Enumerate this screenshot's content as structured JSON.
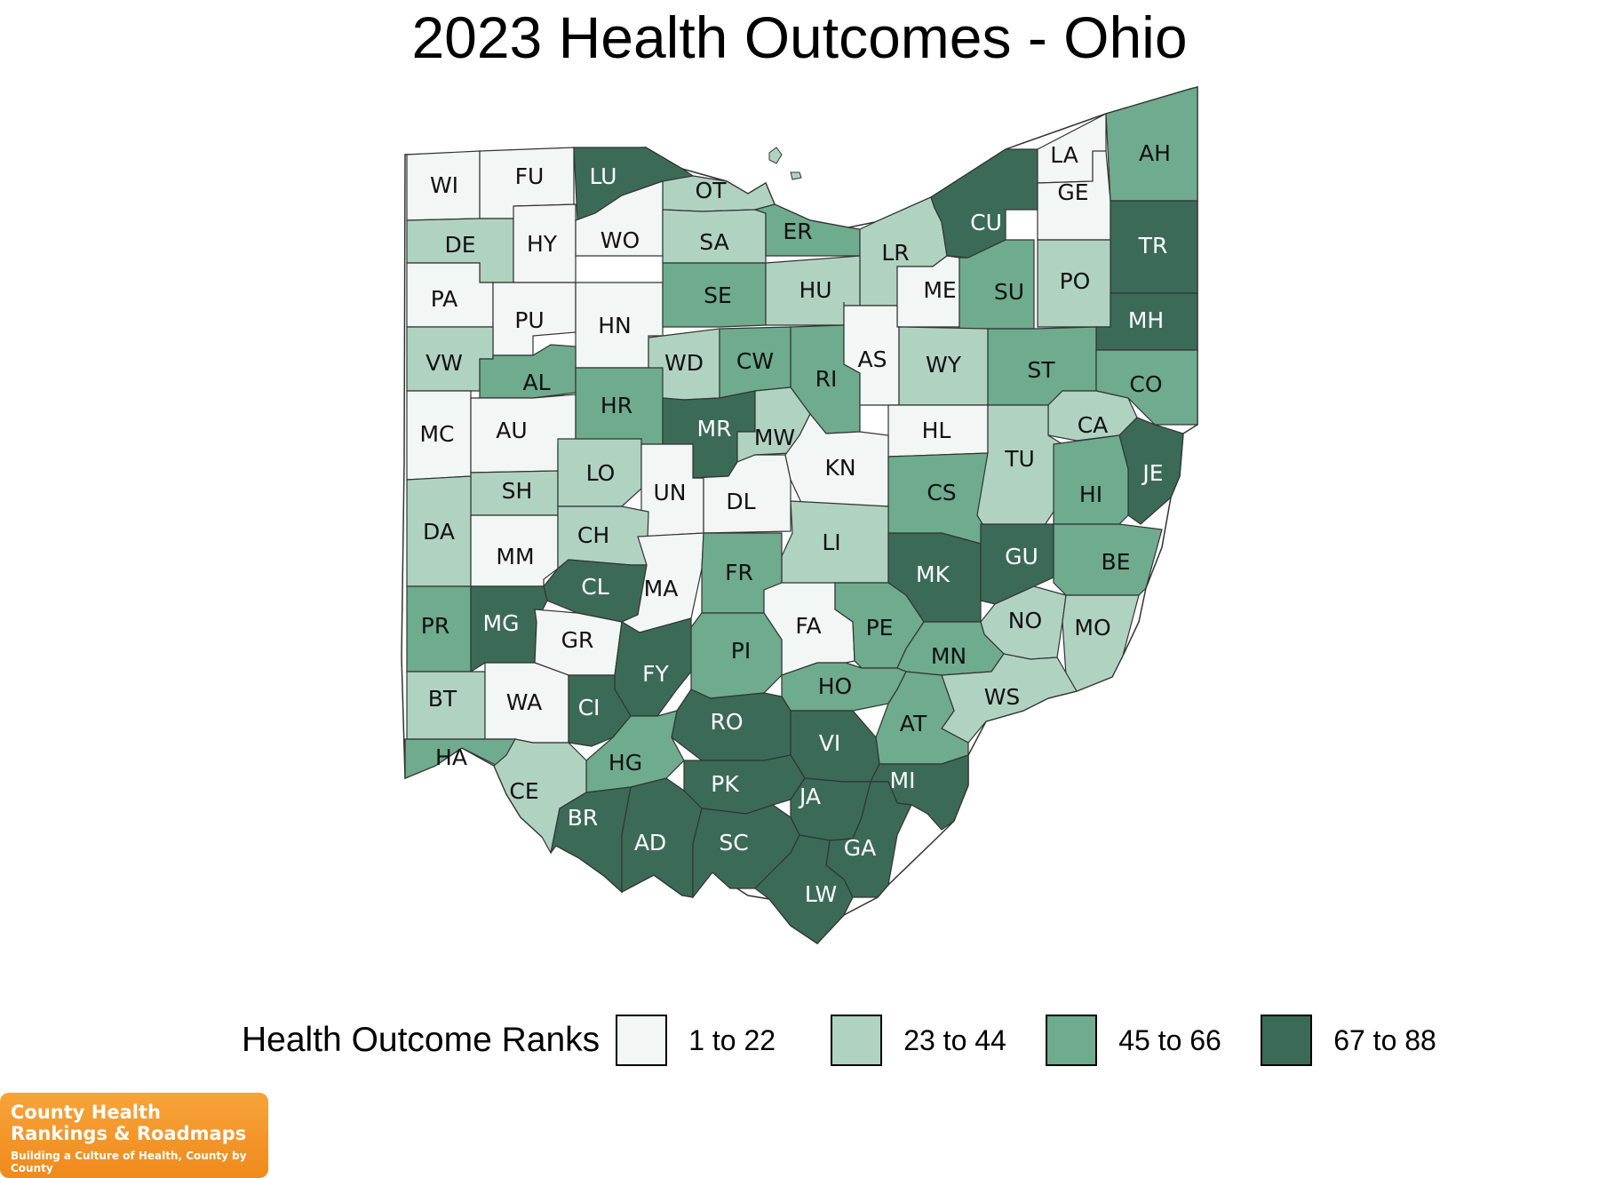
{
  "title": "2023 Health Outcomes - Ohio",
  "legend": {
    "title": "Health Outcome Ranks",
    "bins": [
      {
        "label": "1 to 22",
        "color": "#f2f6f4"
      },
      {
        "label": "23 to 44",
        "color": "#b0d3c1"
      },
      {
        "label": "45 to 66",
        "color": "#6fab8e"
      },
      {
        "label": "67 to 88",
        "color": "#3b6b56"
      }
    ]
  },
  "counties": [
    {
      "code": "WI",
      "bin": 0
    },
    {
      "code": "FU",
      "bin": 0
    },
    {
      "code": "LU",
      "bin": 3
    },
    {
      "code": "OT",
      "bin": 1
    },
    {
      "code": "DE",
      "bin": 1
    },
    {
      "code": "HY",
      "bin": 0
    },
    {
      "code": "WO",
      "bin": 0
    },
    {
      "code": "SA",
      "bin": 1
    },
    {
      "code": "ER",
      "bin": 2
    },
    {
      "code": "LR",
      "bin": 1
    },
    {
      "code": "CU",
      "bin": 3
    },
    {
      "code": "LA",
      "bin": 0
    },
    {
      "code": "GE",
      "bin": 0
    },
    {
      "code": "AH",
      "bin": 2
    },
    {
      "code": "TR",
      "bin": 3
    },
    {
      "code": "PA",
      "bin": 0
    },
    {
      "code": "PU",
      "bin": 0
    },
    {
      "code": "HN",
      "bin": 0
    },
    {
      "code": "SE",
      "bin": 2
    },
    {
      "code": "HU",
      "bin": 1
    },
    {
      "code": "ME",
      "bin": 0
    },
    {
      "code": "SU",
      "bin": 2
    },
    {
      "code": "PO",
      "bin": 1
    },
    {
      "code": "MH",
      "bin": 3
    },
    {
      "code": "VW",
      "bin": 1
    },
    {
      "code": "AL",
      "bin": 2
    },
    {
      "code": "WD",
      "bin": 1
    },
    {
      "code": "CW",
      "bin": 2
    },
    {
      "code": "RI",
      "bin": 2
    },
    {
      "code": "AS",
      "bin": 0
    },
    {
      "code": "WY",
      "bin": 1
    },
    {
      "code": "ST",
      "bin": 2
    },
    {
      "code": "CO",
      "bin": 2
    },
    {
      "code": "MC",
      "bin": 0
    },
    {
      "code": "AU",
      "bin": 0
    },
    {
      "code": "HR",
      "bin": 2
    },
    {
      "code": "MR",
      "bin": 3
    },
    {
      "code": "MW",
      "bin": 1
    },
    {
      "code": "HL",
      "bin": 0
    },
    {
      "code": "CA",
      "bin": 1
    },
    {
      "code": "JE",
      "bin": 3
    },
    {
      "code": "SH",
      "bin": 1
    },
    {
      "code": "LO",
      "bin": 1
    },
    {
      "code": "UN",
      "bin": 0
    },
    {
      "code": "DL",
      "bin": 0
    },
    {
      "code": "KN",
      "bin": 0
    },
    {
      "code": "TU",
      "bin": 1
    },
    {
      "code": "CS",
      "bin": 2
    },
    {
      "code": "HI",
      "bin": 2
    },
    {
      "code": "DA",
      "bin": 1
    },
    {
      "code": "MM",
      "bin": 0
    },
    {
      "code": "CH",
      "bin": 1
    },
    {
      "code": "LI",
      "bin": 1
    },
    {
      "code": "MK",
      "bin": 3
    },
    {
      "code": "GU",
      "bin": 3
    },
    {
      "code": "BE",
      "bin": 2
    },
    {
      "code": "CL",
      "bin": 3
    },
    {
      "code": "MA",
      "bin": 0
    },
    {
      "code": "FR",
      "bin": 2
    },
    {
      "code": "PR",
      "bin": 2
    },
    {
      "code": "MG",
      "bin": 3
    },
    {
      "code": "GR",
      "bin": 0
    },
    {
      "code": "FA",
      "bin": 0
    },
    {
      "code": "PE",
      "bin": 2
    },
    {
      "code": "NO",
      "bin": 1
    },
    {
      "code": "MO",
      "bin": 1
    },
    {
      "code": "FY",
      "bin": 3
    },
    {
      "code": "PI",
      "bin": 2
    },
    {
      "code": "MN",
      "bin": 2
    },
    {
      "code": "BT",
      "bin": 1
    },
    {
      "code": "WA",
      "bin": 0
    },
    {
      "code": "CI",
      "bin": 3
    },
    {
      "code": "HO",
      "bin": 2
    },
    {
      "code": "WS",
      "bin": 1
    },
    {
      "code": "RO",
      "bin": 3
    },
    {
      "code": "AT",
      "bin": 2
    },
    {
      "code": "HA",
      "bin": 2
    },
    {
      "code": "HG",
      "bin": 2
    },
    {
      "code": "VI",
      "bin": 3
    },
    {
      "code": "CE",
      "bin": 1
    },
    {
      "code": "PK",
      "bin": 3
    },
    {
      "code": "MI",
      "bin": 3
    },
    {
      "code": "JA",
      "bin": 3
    },
    {
      "code": "BR",
      "bin": 3
    },
    {
      "code": "AD",
      "bin": 3
    },
    {
      "code": "SC",
      "bin": 3
    },
    {
      "code": "GA",
      "bin": 3
    },
    {
      "code": "LW",
      "bin": 3
    }
  ],
  "logo": {
    "line1": "County Health",
    "line2": "Rankings & Roadmaps",
    "tagline": "Building a Culture of Health, County by County"
  }
}
